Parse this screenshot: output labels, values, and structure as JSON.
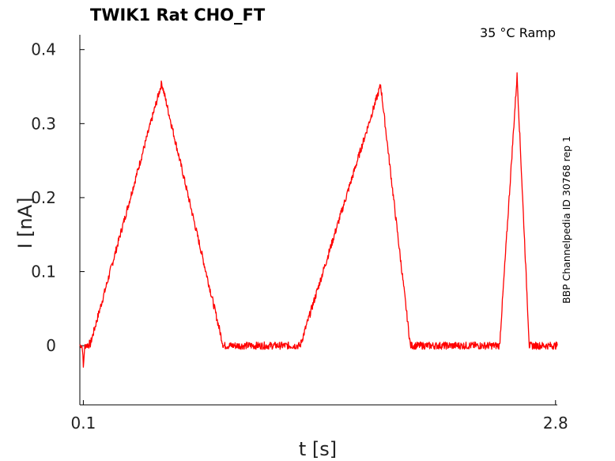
{
  "chart_data": {
    "type": "line",
    "title": "TWIK1  Rat  CHO_FT",
    "subtitle": "35 °C  Ramp",
    "side_note": "BBP Channelpedia ID 30768 rep 1",
    "xlabel": "t [s]",
    "ylabel": "I [nA]",
    "xlim": [
      0.08,
      2.81
    ],
    "ylim": [
      -0.08,
      0.42
    ],
    "x_ticks": [
      0.1,
      2.8
    ],
    "y_ticks": [
      0,
      0.1,
      0.2,
      0.3,
      0.4
    ],
    "x_tick_labels": [
      "0.1",
      "2.8"
    ],
    "y_tick_labels": [
      "0",
      "0.1",
      "0.2",
      "0.3",
      "0.4"
    ],
    "grid": false,
    "series": [
      {
        "color": "#ff0000",
        "noise": 0.005,
        "x": [
          0.08,
          0.085,
          0.09,
          0.095,
          0.1,
          0.105,
          0.11,
          0.115,
          0.12,
          0.125,
          0.13,
          0.135,
          0.14,
          0.548,
          0.9,
          1.34,
          1.8,
          1.97,
          2.06,
          2.48,
          2.58,
          2.65,
          2.76,
          2.77,
          2.81
        ],
        "y": [
          0.0,
          0.001,
          0.0,
          -0.003,
          -0.03,
          -0.01,
          0.0,
          0.001,
          0.0,
          0.002,
          0.0,
          0.003,
          0.002,
          0.355,
          0.0,
          0.0,
          0.352,
          0.0,
          0.0,
          0.0,
          0.365,
          0.0,
          0.0,
          0.0,
          0.0
        ]
      }
    ]
  }
}
